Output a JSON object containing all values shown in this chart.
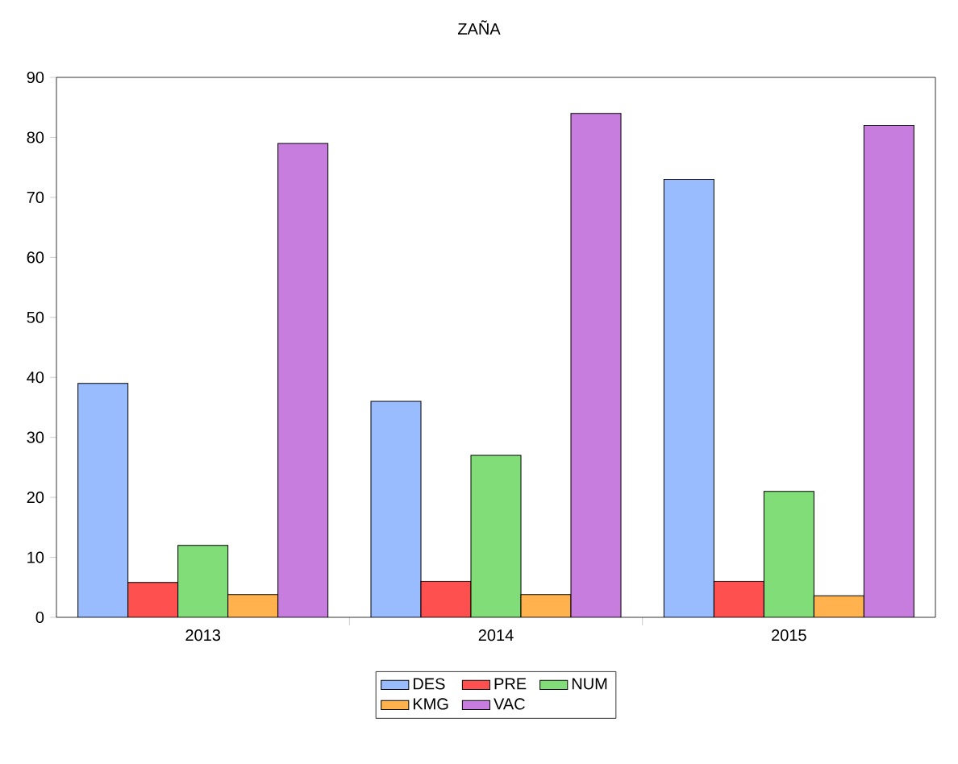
{
  "chart_data": {
    "type": "bar",
    "title": "ZAÑA",
    "categories": [
      "2013",
      "2014",
      "2015"
    ],
    "series": [
      {
        "name": "DES",
        "color": "#99bbff",
        "values": [
          39,
          36,
          73
        ]
      },
      {
        "name": "PRE",
        "color": "#ff5050",
        "values": [
          5.8,
          6,
          6
        ]
      },
      {
        "name": "NUM",
        "color": "#80dd77",
        "values": [
          12,
          27,
          21
        ]
      },
      {
        "name": "KMG",
        "color": "#ffb24d",
        "values": [
          3.8,
          3.8,
          3.6
        ]
      },
      {
        "name": "VAC",
        "color": "#c77ddd",
        "values": [
          79,
          84,
          82
        ]
      }
    ],
    "ylim": [
      0,
      90
    ],
    "yticks": [
      0,
      10,
      20,
      30,
      40,
      50,
      60,
      70,
      80,
      90
    ],
    "grid": false,
    "legend": "bottom"
  }
}
